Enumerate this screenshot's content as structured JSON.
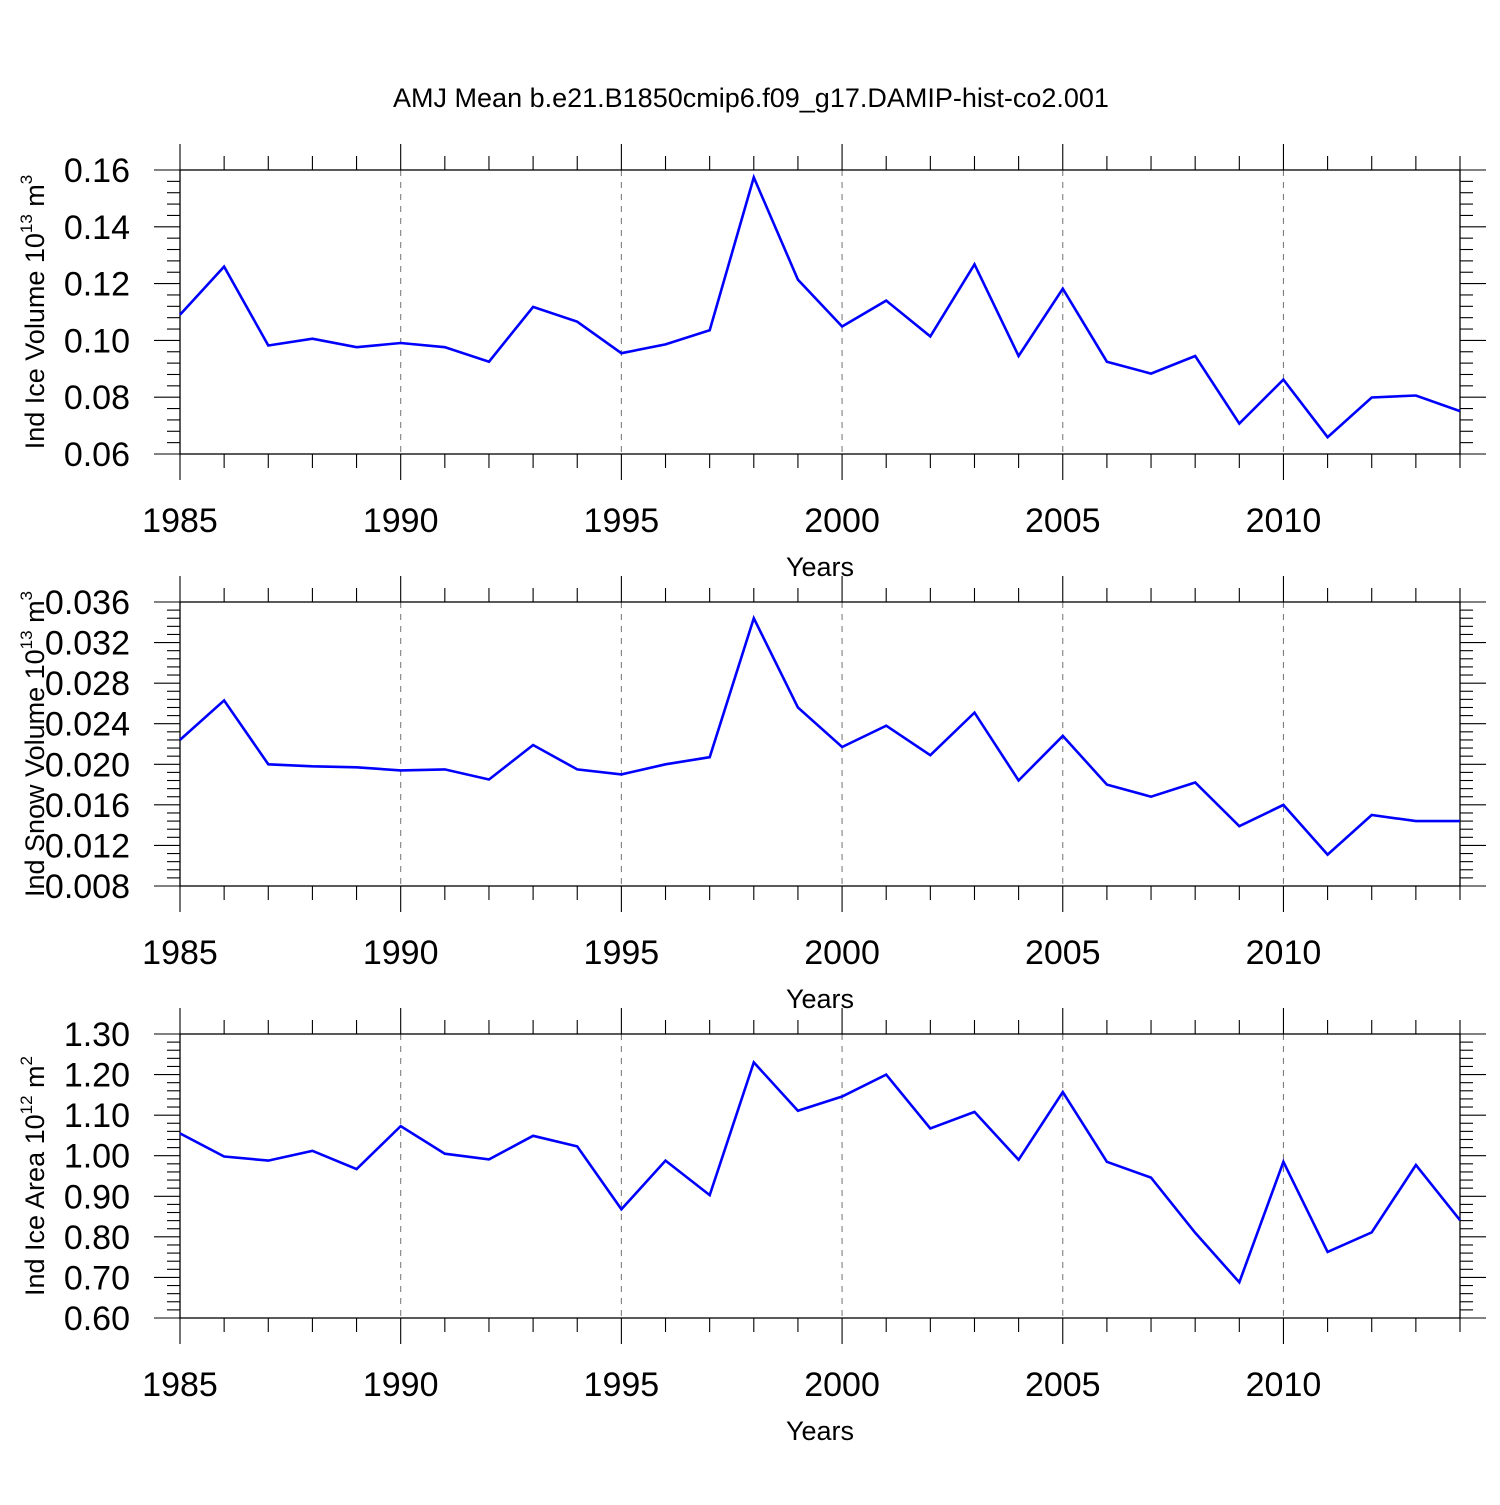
{
  "chart_data": [
    {
      "type": "line",
      "title": "AMJ Mean b.e21.B1850cmip6.f09_g17.DAMIP-hist-co2.001",
      "xlabel": "Years",
      "ylabel": "Ind Ice Volume 10",
      "ylabel_sup": "13",
      "ylabel_unit": " m",
      "ylabel_unit_sup": "3",
      "xlim": [
        1985,
        2014
      ],
      "ylim": [
        0.06,
        0.16
      ],
      "xticks": [
        "1985",
        "1990",
        "1995",
        "2000",
        "2005",
        "2010"
      ],
      "yticks": [
        "0.06",
        "0.08",
        "0.10",
        "0.12",
        "0.14",
        "0.16"
      ],
      "grid": "vertical dashed at major x ticks",
      "color": "#0000ff",
      "x": [
        1985,
        1986,
        1987,
        1988,
        1989,
        1990,
        1991,
        1992,
        1993,
        1994,
        1995,
        1996,
        1997,
        1998,
        1999,
        2000,
        2001,
        2002,
        2003,
        2004,
        2005,
        2006,
        2007,
        2008,
        2009,
        2010,
        2011,
        2012,
        2013,
        2014
      ],
      "values": [
        0.109,
        0.126,
        0.0982,
        0.1006,
        0.0976,
        0.0991,
        0.0976,
        0.0925,
        0.1118,
        0.1066,
        0.0955,
        0.0986,
        0.1036,
        0.1574,
        0.1214,
        0.1049,
        0.114,
        0.1014,
        0.1268,
        0.0945,
        0.1182,
        0.0925,
        0.0883,
        0.0945,
        0.0707,
        0.0862,
        0.0659,
        0.0799,
        0.0806,
        0.0751
      ]
    },
    {
      "type": "line",
      "xlabel": "Years",
      "ylabel": "Ind Snow Volume 10",
      "ylabel_sup": "13",
      "ylabel_unit": " m",
      "ylabel_unit_sup": "3",
      "xlim": [
        1985,
        2014
      ],
      "ylim": [
        0.008,
        0.036
      ],
      "xticks": [
        "1985",
        "1990",
        "1995",
        "2000",
        "2005",
        "2010"
      ],
      "yticks": [
        "0.008",
        "0.012",
        "0.016",
        "0.020",
        "0.024",
        "0.028",
        "0.032",
        "0.036"
      ],
      "grid": "vertical dashed at major x ticks",
      "color": "#0000ff",
      "x": [
        1985,
        1986,
        1987,
        1988,
        1989,
        1990,
        1991,
        1992,
        1993,
        1994,
        1995,
        1996,
        1997,
        1998,
        1999,
        2000,
        2001,
        2002,
        2003,
        2004,
        2005,
        2006,
        2007,
        2008,
        2009,
        2010,
        2011,
        2012,
        2013,
        2014
      ],
      "values": [
        0.0224,
        0.0263,
        0.02,
        0.0198,
        0.0197,
        0.0194,
        0.0195,
        0.0185,
        0.0219,
        0.0195,
        0.019,
        0.02,
        0.0207,
        0.0344,
        0.0256,
        0.0217,
        0.0238,
        0.0209,
        0.0251,
        0.0184,
        0.0228,
        0.018,
        0.0168,
        0.0182,
        0.0139,
        0.016,
        0.0111,
        0.015,
        0.0144,
        0.0144
      ]
    },
    {
      "type": "line",
      "xlabel": "Years",
      "ylabel": "Ind Ice Area 10",
      "ylabel_sup": "12",
      "ylabel_unit": " m",
      "ylabel_unit_sup": "2",
      "xlim": [
        1985,
        2014
      ],
      "ylim": [
        0.6,
        1.3
      ],
      "xticks": [
        "1985",
        "1990",
        "1995",
        "2000",
        "2005",
        "2010"
      ],
      "yticks": [
        "0.60",
        "0.70",
        "0.80",
        "0.90",
        "1.00",
        "1.10",
        "1.20",
        "1.30"
      ],
      "grid": "vertical dashed at major x ticks",
      "color": "#0000ff",
      "x": [
        1985,
        1986,
        1987,
        1988,
        1989,
        1990,
        1991,
        1992,
        1993,
        1994,
        1995,
        1996,
        1997,
        1998,
        1999,
        2000,
        2001,
        2002,
        2003,
        2004,
        2005,
        2006,
        2007,
        2008,
        2009,
        2010,
        2011,
        2012,
        2013,
        2014
      ],
      "values": [
        1.055,
        0.998,
        0.988,
        1.012,
        0.967,
        1.073,
        1.005,
        0.991,
        1.049,
        1.023,
        0.868,
        0.988,
        0.903,
        1.23,
        1.111,
        1.146,
        1.2,
        1.067,
        1.108,
        0.99,
        1.157,
        0.985,
        0.946,
        0.81,
        0.688,
        0.985,
        0.763,
        0.811,
        0.977,
        0.841
      ]
    }
  ]
}
